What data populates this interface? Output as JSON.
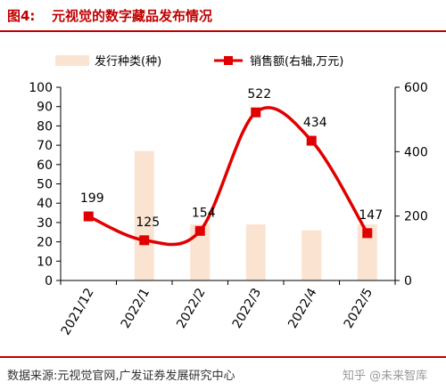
{
  "figure": {
    "label": "图4:",
    "title": "元视觉的数字藏品发布情况",
    "source": "数据来源:元视觉官网,广发证券发展研究中心",
    "watermark": "知乎 @未来智库"
  },
  "colors": {
    "title_red": "#c00000",
    "bar": "#fbe3d2",
    "line": "#e00000"
  },
  "chart_data": {
    "type": "bar+line",
    "categories": [
      "2021/12",
      "2022/1",
      "2022/2",
      "2022/3",
      "2022/4",
      "2022/5"
    ],
    "series": [
      {
        "name": "发行种类(种)",
        "type": "bar",
        "axis": "left",
        "values": [
          0,
          67,
          29,
          29,
          26,
          29
        ]
      },
      {
        "name": "销售额(右轴,万元)",
        "type": "line",
        "axis": "right",
        "smooth": true,
        "marker": "square",
        "values": [
          199,
          125,
          154,
          522,
          434,
          147
        ],
        "labels": [
          "199",
          "125",
          "154",
          "522",
          "434",
          "147"
        ]
      }
    ],
    "y_left": {
      "min": 0,
      "max": 100,
      "step": 10
    },
    "y_right": {
      "min": 0,
      "max": 600,
      "step": 200
    },
    "legend_position": "top",
    "grid": false
  }
}
